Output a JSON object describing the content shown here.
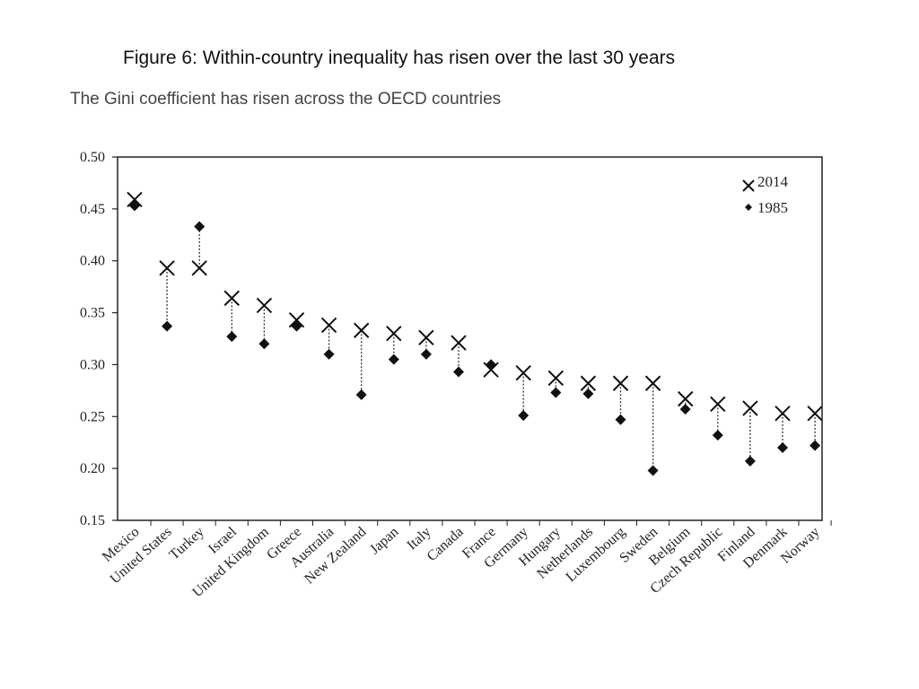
{
  "page": {
    "title": "Figure 6:  Within-country inequality has risen over the last 30 years",
    "subtitle": "The Gini coefficient has risen across the OECD countries"
  },
  "chart_data": {
    "type": "scatter",
    "title": "",
    "xlabel": "",
    "ylabel": "",
    "ylim": [
      0.15,
      0.5
    ],
    "yticks": [
      "0.50",
      "0.45",
      "0.40",
      "0.35",
      "0.30",
      "0.25",
      "0.20",
      "0.15"
    ],
    "grid": false,
    "legend_position": "top-right",
    "categories": [
      "Mexico",
      "United States",
      "Turkey",
      "Israel",
      "United Kingdom",
      "Greece",
      "Australia",
      "New Zealand",
      "Japan",
      "Italy",
      "Canada",
      "France",
      "Germany",
      "Hungary",
      "Netherlands",
      "Luxembourg",
      "Sweden",
      "Belgium",
      "Czech Republic",
      "Finland",
      "Denmark",
      "Norway"
    ],
    "series": [
      {
        "name": "2014",
        "marker": "x",
        "values": [
          0.459,
          0.393,
          0.393,
          0.364,
          0.357,
          0.343,
          0.338,
          0.333,
          0.33,
          0.326,
          0.321,
          0.295,
          0.292,
          0.287,
          0.282,
          0.282,
          0.282,
          0.267,
          0.262,
          0.258,
          0.253,
          0.253
        ]
      },
      {
        "name": "1985",
        "marker": "diamond",
        "values": [
          0.453,
          0.337,
          0.433,
          0.327,
          0.32,
          0.337,
          0.31,
          0.271,
          0.305,
          0.31,
          0.293,
          0.3,
          0.251,
          0.273,
          0.272,
          0.247,
          0.198,
          0.257,
          0.232,
          0.207,
          0.22,
          0.222
        ]
      }
    ]
  }
}
